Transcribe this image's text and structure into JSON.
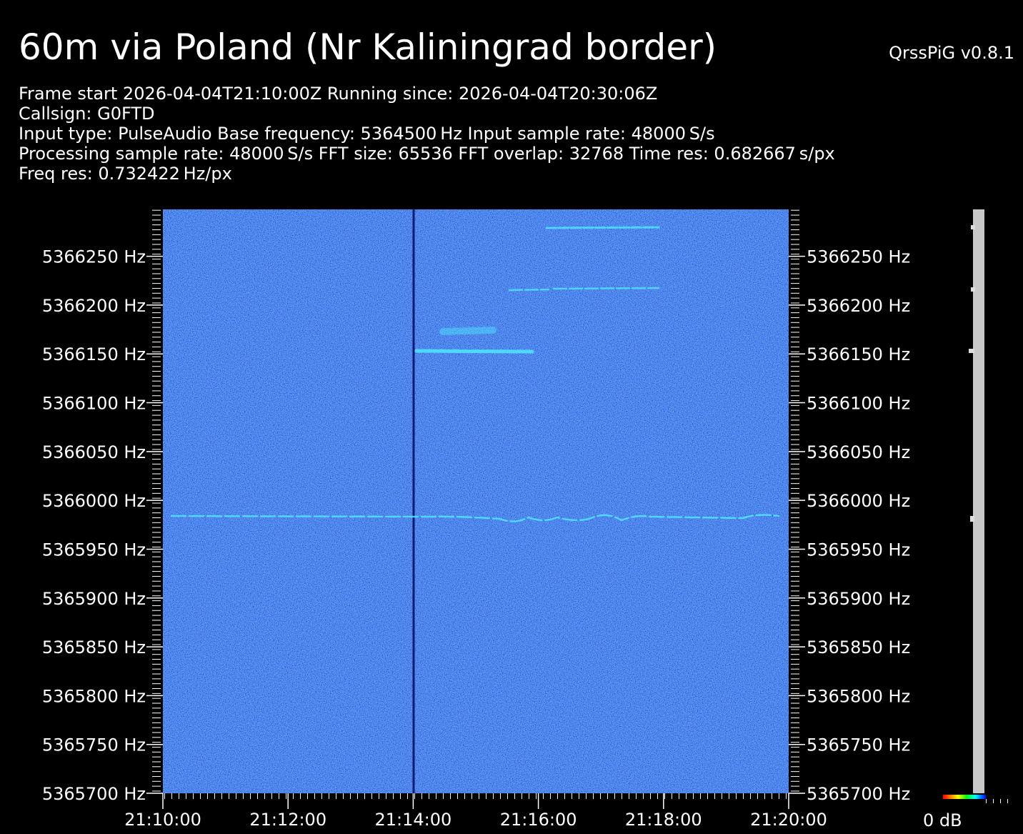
{
  "chart_data": {
    "type": "spectrogram",
    "title": "60m via Poland (Nr Kaliningrad border)",
    "version": "QrssPiG v0.8.1",
    "info": [
      "Frame start 2026-04-04T21:10:00Z Running since: 2026-04-04T20:30:06Z",
      "Callsign: G0FTD",
      "Input type: PulseAudio Base frequency: 5364500 Hz Input sample rate: 48000 S/s",
      "Processing sample rate: 48000 S/s FFT size: 65536 FFT overlap: 32768 Time res: 0.682667 s/px",
      "Freq res: 0.732422 Hz/px"
    ],
    "ylim": [
      5365700,
      5366298
    ],
    "yticks": [
      {
        "value": 5365700,
        "label": "5365700 Hz"
      },
      {
        "value": 5365750,
        "label": "5365750 Hz"
      },
      {
        "value": 5365800,
        "label": "5365800 Hz"
      },
      {
        "value": 5365850,
        "label": "5365850 Hz"
      },
      {
        "value": 5365900,
        "label": "5365900 Hz"
      },
      {
        "value": 5365950,
        "label": "5365950 Hz"
      },
      {
        "value": 5366000,
        "label": "5366000 Hz"
      },
      {
        "value": 5366050,
        "label": "5366050 Hz"
      },
      {
        "value": 5366100,
        "label": "5366100 Hz"
      },
      {
        "value": 5366150,
        "label": "5366150 Hz"
      },
      {
        "value": 5366200,
        "label": "5366200 Hz"
      },
      {
        "value": 5366250,
        "label": "5366250 Hz"
      }
    ],
    "xticks": [
      "21:10:00",
      "21:12:00",
      "21:14:00",
      "21:16:00",
      "21:18:00",
      "21:20:00"
    ],
    "colorbar_label": "0 dB"
  }
}
